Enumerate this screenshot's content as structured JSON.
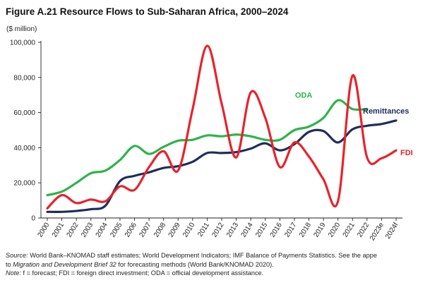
{
  "figure": {
    "title": "Figure A.21 Resource Flows to Sub-Saharan Africa, 2000–2024",
    "y_unit": "($ million)"
  },
  "notes": {
    "source_label": "Source:",
    "source_text": " World Bank–KNOMAD staff estimates; World Development Indicators; IMF Balance of Payments Statistics. See the appe",
    "line2_prefix": "to ",
    "line2_italic": "Migration and Development Brief 32",
    "line2_suffix": " for forecasting methods (World Bank/KNOMAD 2020).",
    "note_label": "Note:",
    "note_text": " f = forecast; FDI = foreign direct investment; ODA = official development assistance."
  },
  "chart_data": {
    "type": "line",
    "title": "Figure A.21 Resource Flows to Sub-Saharan Africa, 2000–2024",
    "xlabel": "",
    "ylabel": "($ million)",
    "ylim": [
      0,
      100000
    ],
    "yticks": [
      0,
      20000,
      40000,
      60000,
      80000,
      100000
    ],
    "ytick_labels": [
      "0",
      "20,000",
      "40,000",
      "60,000",
      "80,000",
      "100,000"
    ],
    "grid": false,
    "categories": [
      "2000",
      "2001",
      "2002",
      "2003",
      "2004",
      "2005",
      "2006",
      "2007",
      "2008",
      "2009",
      "2010",
      "2011",
      "2012",
      "2013",
      "2014",
      "2015",
      "2016",
      "2017",
      "2018",
      "2019",
      "2020",
      "2021",
      "2022",
      "2023e",
      "2024f"
    ],
    "series": [
      {
        "name": "ODA",
        "color": "#2db34a",
        "values": [
          13000,
          15000,
          20000,
          25500,
          27000,
          33000,
          41000,
          36500,
          40500,
          44000,
          44500,
          47000,
          46500,
          47500,
          46500,
          44500,
          44500,
          50000,
          52000,
          57000,
          67000,
          62000,
          62000,
          null,
          null
        ]
      },
      {
        "name": "Remittances",
        "color": "#1f2d5c",
        "values": [
          3500,
          3500,
          4000,
          5000,
          7000,
          21000,
          24000,
          26000,
          28500,
          29500,
          32000,
          37000,
          37000,
          37500,
          39500,
          42500,
          38500,
          42000,
          49000,
          49500,
          43000,
          50500,
          52500,
          53500,
          55500
        ]
      },
      {
        "name": "FDI",
        "color": "#e8232b",
        "values": [
          5500,
          13000,
          8500,
          10500,
          9500,
          18000,
          16000,
          29000,
          38000,
          27000,
          62000,
          98000,
          65000,
          34500,
          71500,
          57000,
          29000,
          43000,
          35000,
          22000,
          9500,
          81000,
          34500,
          34000,
          38500
        ]
      }
    ],
    "legend": "inline labels next to each series"
  }
}
